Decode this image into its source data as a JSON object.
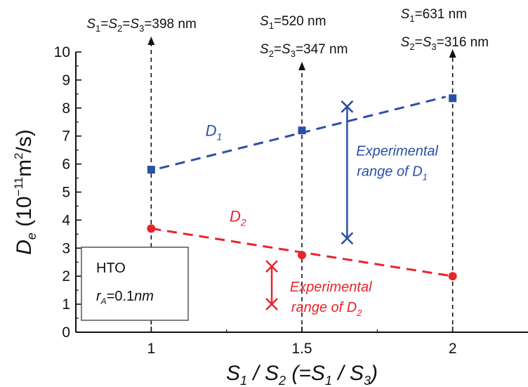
{
  "chart_data": {
    "type": "scatter",
    "xlabel": {
      "main": "S",
      "sub1": "1",
      "slash": " / ",
      "main2": "S",
      "sub2": "2",
      "paren_open": " (=",
      "main3": "S",
      "sub3": "1",
      "slash2": " / ",
      "main4": "S",
      "sub4": "3",
      "paren_close": ")"
    },
    "ylabel": {
      "main": "D",
      "sub": "e",
      "unit_open": " (10",
      "exp": "−11",
      "unit_mid": "m",
      "exp2": "2",
      "unit_close": "/s)"
    },
    "xlim": [
      0.75,
      2.25
    ],
    "ylim": [
      0,
      10
    ],
    "x_ticks": [
      {
        "value": 1,
        "label": "1"
      },
      {
        "value": 1.5,
        "label": "1.5"
      },
      {
        "value": 2,
        "label": "2"
      }
    ],
    "y_ticks": [
      {
        "value": 0,
        "label": "0"
      },
      {
        "value": 1,
        "label": "1"
      },
      {
        "value": 2,
        "label": "2"
      },
      {
        "value": 3,
        "label": "3"
      },
      {
        "value": 4,
        "label": "4"
      },
      {
        "value": 5,
        "label": "5"
      },
      {
        "value": 6,
        "label": "6"
      },
      {
        "value": 7,
        "label": "7"
      },
      {
        "value": 8,
        "label": "8"
      },
      {
        "value": 9,
        "label": "9"
      },
      {
        "value": 10,
        "label": "10"
      }
    ],
    "series": [
      {
        "name": "D1",
        "label_main": "D",
        "label_sub": "1",
        "color": "#2b4fa8",
        "marker": "square",
        "x": [
          1,
          1.5,
          2
        ],
        "y": [
          5.8,
          7.2,
          8.35
        ],
        "trend": {
          "x": [
            1.0,
            2.0
          ],
          "y": [
            5.85,
            8.4
          ]
        }
      },
      {
        "name": "D2",
        "label_main": "D",
        "label_sub": "2",
        "color": "#e8252b",
        "marker": "circle",
        "x": [
          1,
          1.5,
          2
        ],
        "y": [
          3.7,
          2.75,
          2.0
        ],
        "trend": {
          "x": [
            1.0,
            2.0
          ],
          "y": [
            3.7,
            2.0
          ]
        }
      }
    ],
    "ranges": [
      {
        "series": "D1",
        "color": "#2b4fa8",
        "x": 1.65,
        "y_low": 3.35,
        "y_high": 8.05,
        "text_line1": "Experimental",
        "text_line2_main": "range of D",
        "text_line2_sub": "1"
      },
      {
        "series": "D2",
        "color": "#e8252b",
        "x": 1.4,
        "y_low": 1.0,
        "y_high": 2.35,
        "text_line1": "Experimental",
        "text_line2_main": "range of D",
        "text_line2_sub": "2"
      }
    ],
    "verticals": [
      {
        "x": 1,
        "y_top": 10.3
      },
      {
        "x": 1.5,
        "y_top": 9.4
      },
      {
        "x": 2,
        "y_top": 9.85
      }
    ],
    "annotations": [
      {
        "x": 1,
        "lines": [
          {
            "parts": [
              {
                "t": "S",
                "i": true
              },
              {
                "t": "1",
                "sub": true
              },
              {
                "t": "="
              },
              {
                "t": "S",
                "i": true
              },
              {
                "t": "2",
                "sub": true
              },
              {
                "t": "="
              },
              {
                "t": "S",
                "i": true
              },
              {
                "t": "3",
                "sub": true
              },
              {
                "t": "=398 nm"
              }
            ]
          }
        ]
      },
      {
        "x": 1.5,
        "lines": [
          {
            "parts": [
              {
                "t": "S",
                "i": true
              },
              {
                "t": "1",
                "sub": true
              },
              {
                "t": "=520 nm"
              }
            ]
          },
          {
            "parts": [
              {
                "t": "S",
                "i": true
              },
              {
                "t": "2",
                "sub": true
              },
              {
                "t": "="
              },
              {
                "t": "S",
                "i": true
              },
              {
                "t": "3",
                "sub": true
              },
              {
                "t": "=347 nm"
              }
            ]
          }
        ]
      },
      {
        "x": 2,
        "lines": [
          {
            "parts": [
              {
                "t": "S",
                "i": true
              },
              {
                "t": "1",
                "sub": true
              },
              {
                "t": "=631 nm"
              }
            ]
          },
          {
            "parts": [
              {
                "t": "S",
                "i": true
              },
              {
                "t": "2",
                "sub": true
              },
              {
                "t": "="
              },
              {
                "t": "S",
                "i": true
              },
              {
                "t": "3",
                "sub": true
              },
              {
                "t": "=316 nm"
              }
            ]
          }
        ]
      }
    ],
    "info_box": {
      "line1": "HTO",
      "r_main": "r",
      "r_sub": "A",
      "r_eq": "=0.1",
      "r_unit": "nm"
    },
    "grid": false
  }
}
